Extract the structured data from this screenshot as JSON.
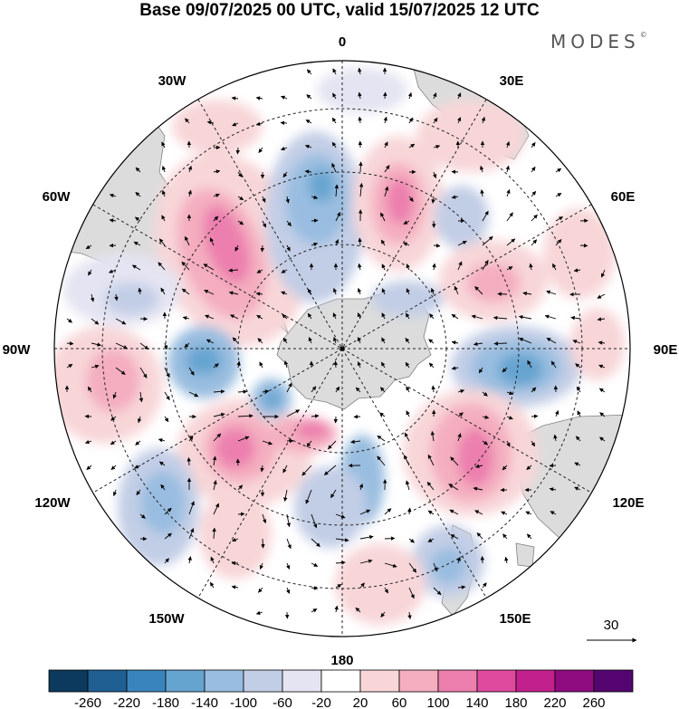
{
  "title": "Base 09/07/2025 00 UTC, valid 15/07/2025 12 UTC",
  "brand": "MODES",
  "brand_mark": "©",
  "longitude_labels": {
    "lon_0": "0",
    "lon_30e": "30E",
    "lon_60e": "60E",
    "lon_90e": "90E",
    "lon_120e": "120E",
    "lon_150e": "150E",
    "lon_180": "180",
    "lon_150w": "150W",
    "lon_120w": "120W",
    "lon_90w": "90W",
    "lon_60w": "60W",
    "lon_30w": "30W"
  },
  "reference_vector": "30",
  "colorbar": {
    "colors": [
      "#0b3a5e",
      "#1f5f92",
      "#3a84bd",
      "#66a4d0",
      "#99bde0",
      "#c2cee6",
      "#e4e4f2",
      "#ffffff",
      "#f8d6d8",
      "#f4aebf",
      "#ec7fae",
      "#df4a9f",
      "#c2218d",
      "#8e0c7f",
      "#55056f"
    ],
    "ticks": [
      "-260",
      "-220",
      "-180",
      "-140",
      "-100",
      "-60",
      "-20",
      "20",
      "60",
      "100",
      "140",
      "180",
      "220",
      "260"
    ]
  }
}
